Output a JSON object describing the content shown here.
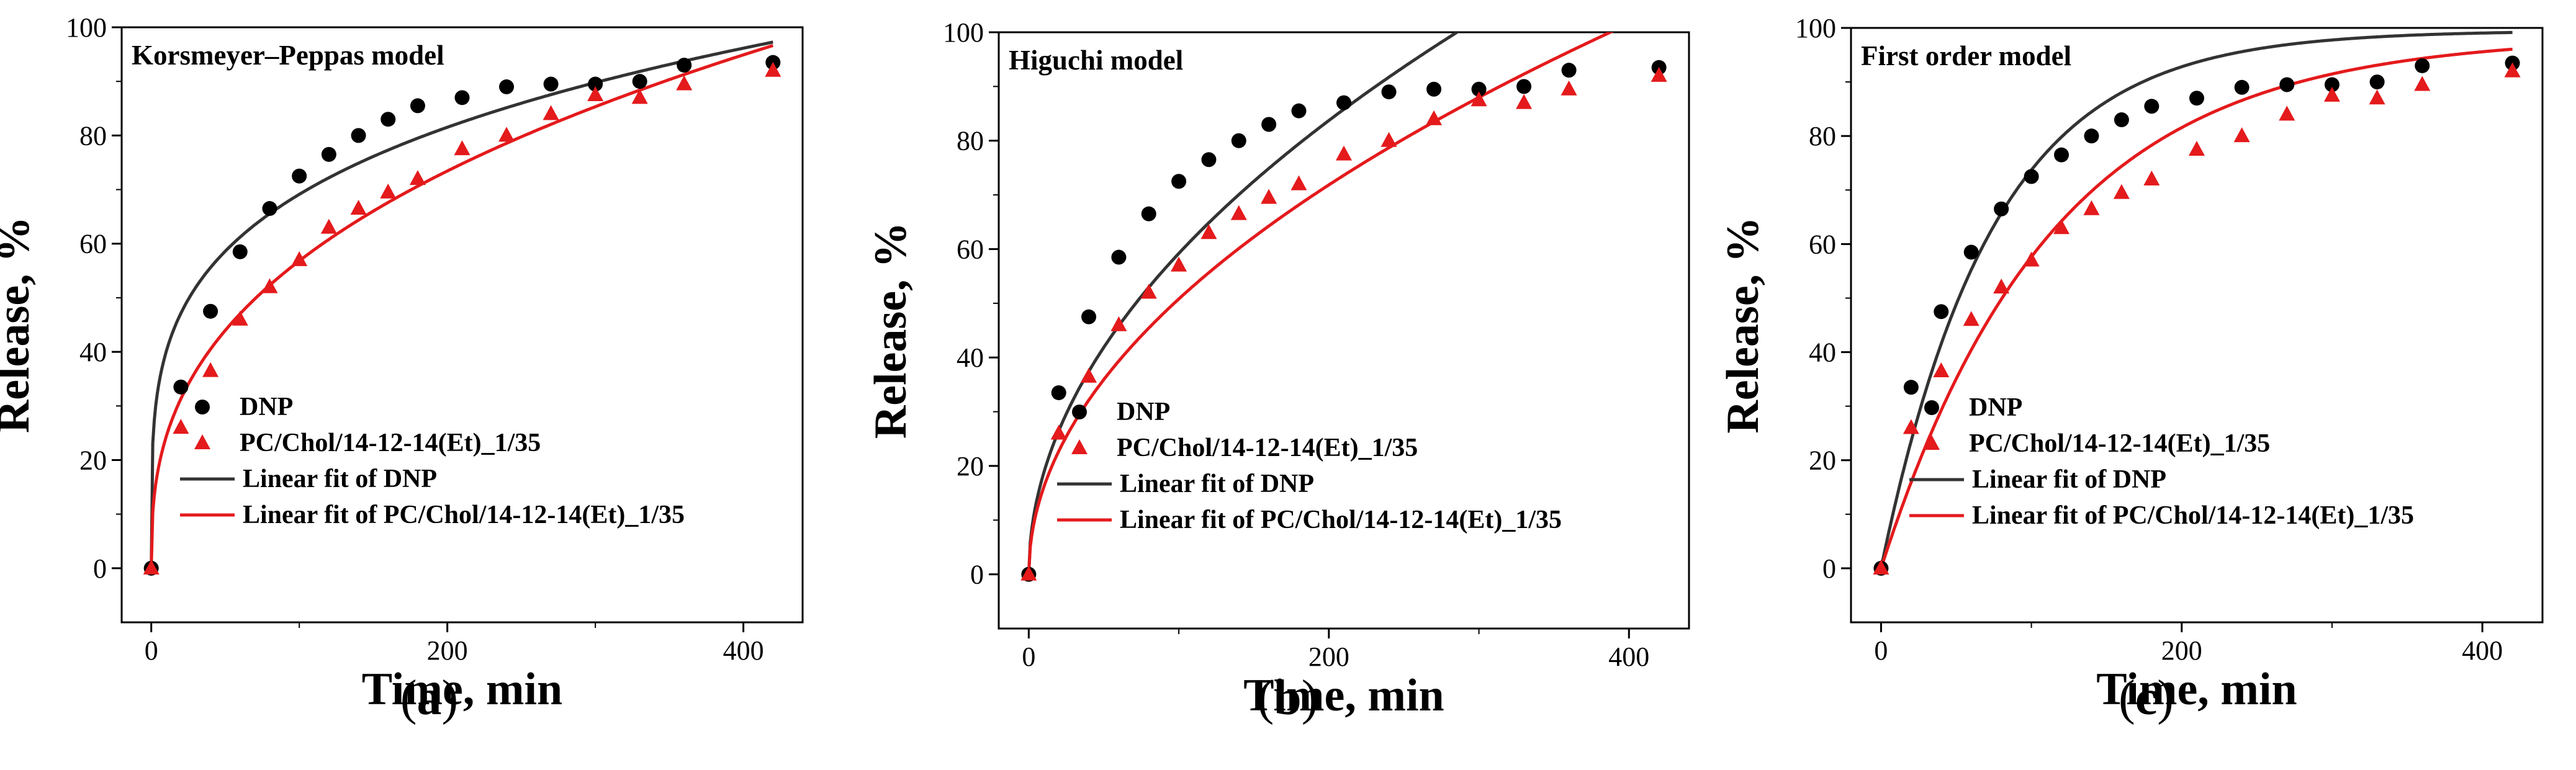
{
  "chart_data": [
    {
      "id": "a",
      "type": "scatter",
      "title": "Korsmeyer–Peppas model",
      "xlabel": "Time, min",
      "ylabel": "Release, %",
      "xlim": [
        -20,
        440
      ],
      "ylim": [
        -10,
        100
      ],
      "xticks": [
        0,
        200,
        400
      ],
      "yticks": [
        0,
        20,
        40,
        60,
        80,
        100
      ],
      "caption_letter": "a",
      "series": [
        {
          "name": "DNP",
          "kind": "points",
          "marker": "circle",
          "color": "#000000",
          "x": [
            0,
            20,
            40,
            60,
            80,
            100,
            120,
            140,
            160,
            180,
            210,
            240,
            270,
            300,
            330,
            360,
            420
          ],
          "y": [
            0,
            33.5,
            47.5,
            58.5,
            66.5,
            72.5,
            76.5,
            80,
            83,
            85.5,
            87,
            89,
            89.5,
            89.5,
            90,
            93,
            93.5
          ]
        },
        {
          "name": "PC/Chol/14-12-14(Et)_1/35",
          "kind": "points",
          "marker": "triangle",
          "color": "#e41a1c",
          "x": [
            0,
            20,
            40,
            60,
            80,
            100,
            120,
            140,
            160,
            180,
            210,
            240,
            270,
            300,
            330,
            360,
            420
          ],
          "y": [
            0,
            26,
            36.5,
            46,
            52,
            57,
            63,
            66.5,
            69.5,
            72,
            77.5,
            80,
            84,
            87.5,
            87,
            89.5,
            92
          ]
        },
        {
          "name": "Linear fit of DNP",
          "kind": "line",
          "model": "power",
          "k": 23.1,
          "n": 0.238,
          "color": "#333333"
        },
        {
          "name": "Linear fit of PC/Chol/14-12-14(Et)_1/35",
          "kind": "line",
          "model": "power",
          "k": 10.34,
          "n": 0.37,
          "color": "#e41a1c"
        }
      ]
    },
    {
      "id": "b",
      "type": "scatter",
      "title": "Higuchi model",
      "xlabel": "Time, min",
      "ylabel": "Release, %",
      "xlim": [
        -20,
        440
      ],
      "ylim": [
        -10,
        100
      ],
      "xticks": [
        0,
        200,
        400
      ],
      "yticks": [
        0,
        20,
        40,
        60,
        80,
        100
      ],
      "caption_letter": "b",
      "series": [
        {
          "name": "DNP",
          "kind": "points",
          "marker": "circle",
          "color": "#000000",
          "x": [
            0,
            20,
            40,
            60,
            80,
            100,
            120,
            140,
            160,
            180,
            210,
            240,
            270,
            300,
            330,
            360,
            420
          ],
          "y": [
            0,
            33.5,
            47.5,
            58.5,
            66.5,
            72.5,
            76.5,
            80,
            83,
            85.5,
            87,
            89,
            89.5,
            89.5,
            90,
            93,
            93.5
          ]
        },
        {
          "name": "PC/Chol/14-12-14(Et)_1/35",
          "kind": "points",
          "marker": "triangle",
          "color": "#e41a1c",
          "x": [
            0,
            20,
            40,
            60,
            80,
            100,
            120,
            140,
            160,
            180,
            210,
            240,
            270,
            300,
            330,
            360,
            420
          ],
          "y": [
            0,
            26,
            36.5,
            46,
            52,
            57,
            63,
            66.5,
            69.5,
            72,
            77.5,
            80,
            84,
            87.5,
            87,
            89.5,
            92
          ]
        },
        {
          "name": "Linear fit of DNP",
          "kind": "line",
          "model": "sqrt",
          "k": 5.92,
          "color": "#333333"
        },
        {
          "name": "Linear fit of PC/Chol/14-12-14(Et)_1/35",
          "kind": "line",
          "model": "sqrt",
          "k": 5.08,
          "color": "#e41a1c"
        }
      ]
    },
    {
      "id": "c",
      "type": "scatter",
      "title": "First order model",
      "xlabel": "Time, min",
      "ylabel": "Release, %",
      "xlim": [
        -20,
        440
      ],
      "ylim": [
        -10,
        100
      ],
      "xticks": [
        0,
        200,
        400
      ],
      "yticks": [
        0,
        20,
        40,
        60,
        80,
        100
      ],
      "caption_letter": "c",
      "series": [
        {
          "name": "DNP",
          "kind": "points",
          "marker": "circle",
          "color": "#000000",
          "x": [
            0,
            20,
            40,
            60,
            80,
            100,
            120,
            140,
            160,
            180,
            210,
            240,
            270,
            300,
            330,
            360,
            420
          ],
          "y": [
            0,
            33.5,
            47.5,
            58.5,
            66.5,
            72.5,
            76.5,
            80,
            83,
            85.5,
            87,
            89,
            89.5,
            89.5,
            90,
            93,
            93.5
          ]
        },
        {
          "name": "PC/Chol/14-12-14(Et)_1/35",
          "kind": "points",
          "marker": "triangle",
          "color": "#e41a1c",
          "x": [
            0,
            20,
            40,
            60,
            80,
            100,
            120,
            140,
            160,
            180,
            210,
            240,
            270,
            300,
            330,
            360,
            420
          ],
          "y": [
            0,
            26,
            36.5,
            46,
            52,
            57,
            63,
            66.5,
            69.5,
            72,
            77.5,
            80,
            84,
            87.5,
            87,
            89.5,
            92
          ]
        },
        {
          "name": "Linear fit of DNP",
          "kind": "line",
          "model": "first_order",
          "a": 99.5,
          "k": 0.0135,
          "color": "#333333"
        },
        {
          "name": "Linear fit of PC/Chol/14-12-14(Et)_1/35",
          "kind": "line",
          "model": "first_order",
          "a": 98.5,
          "k": 0.0088,
          "color": "#e41a1c"
        }
      ]
    }
  ]
}
